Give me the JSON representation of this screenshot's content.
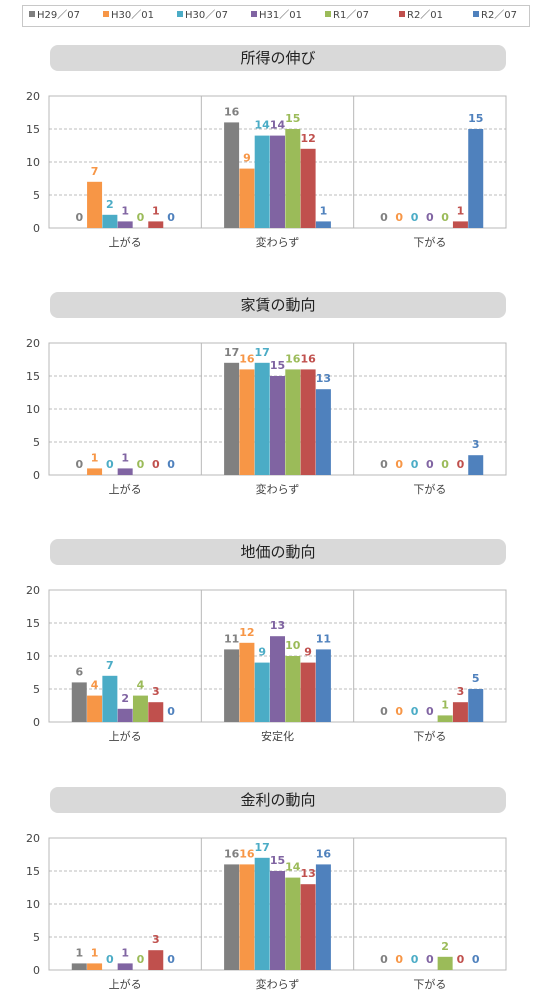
{
  "legend": {
    "series_labels": [
      "H29／07",
      "H30／01",
      "H30／07",
      "H31／01",
      "R1／07",
      "R2／01",
      "R2／07"
    ],
    "series_colors": [
      "#808080",
      "#f79646",
      "#4bacc6",
      "#8064a2",
      "#9bbb59",
      "#c0504d",
      "#4f81bd"
    ]
  },
  "chart_data": [
    {
      "type": "bar",
      "title": "所得の伸び",
      "categories": [
        "上がる",
        "変わらず",
        "下がる"
      ],
      "ylim": [
        0,
        20
      ],
      "yticks": [
        0,
        5,
        10,
        15,
        20
      ],
      "grid": true,
      "series": [
        {
          "name": "H29／07",
          "values": [
            0,
            16,
            0
          ]
        },
        {
          "name": "H30／01",
          "values": [
            7,
            9,
            0
          ]
        },
        {
          "name": "H30／07",
          "values": [
            2,
            14,
            0
          ]
        },
        {
          "name": "H31／01",
          "values": [
            1,
            14,
            0
          ]
        },
        {
          "name": "R1／07",
          "values": [
            0,
            15,
            0
          ]
        },
        {
          "name": "R2／01",
          "values": [
            1,
            12,
            1
          ]
        },
        {
          "name": "R2／07",
          "values": [
            0,
            1,
            15
          ]
        }
      ]
    },
    {
      "type": "bar",
      "title": "家賃の動向",
      "categories": [
        "上がる",
        "変わらず",
        "下がる"
      ],
      "ylim": [
        0,
        20
      ],
      "yticks": [
        0,
        5,
        10,
        15,
        20
      ],
      "grid": true,
      "series": [
        {
          "name": "H29／07",
          "values": [
            0,
            17,
            0
          ]
        },
        {
          "name": "H30／01",
          "values": [
            1,
            16,
            0
          ]
        },
        {
          "name": "H30／07",
          "values": [
            0,
            17,
            0
          ]
        },
        {
          "name": "H31／01",
          "values": [
            1,
            15,
            0
          ]
        },
        {
          "name": "R1／07",
          "values": [
            0,
            16,
            0
          ]
        },
        {
          "name": "R2／01",
          "values": [
            0,
            16,
            0
          ]
        },
        {
          "name": "R2／07",
          "values": [
            0,
            13,
            3
          ]
        }
      ]
    },
    {
      "type": "bar",
      "title": "地価の動向",
      "categories": [
        "上がる",
        "安定化",
        "下がる"
      ],
      "ylim": [
        0,
        20
      ],
      "yticks": [
        0,
        5,
        10,
        15,
        20
      ],
      "grid": true,
      "series": [
        {
          "name": "H29／07",
          "values": [
            6,
            11,
            0
          ]
        },
        {
          "name": "H30／01",
          "values": [
            4,
            12,
            0
          ]
        },
        {
          "name": "H30／07",
          "values": [
            7,
            9,
            0
          ]
        },
        {
          "name": "H31／01",
          "values": [
            2,
            13,
            0
          ]
        },
        {
          "name": "R1／07",
          "values": [
            4,
            10,
            1
          ]
        },
        {
          "name": "R2／01",
          "values": [
            3,
            9,
            3
          ]
        },
        {
          "name": "R2／07",
          "values": [
            0,
            11,
            5
          ]
        }
      ]
    },
    {
      "type": "bar",
      "title": "金利の動向",
      "categories": [
        "上がる",
        "変わらず",
        "下がる"
      ],
      "ylim": [
        0,
        20
      ],
      "yticks": [
        0,
        5,
        10,
        15,
        20
      ],
      "grid": true,
      "series": [
        {
          "name": "H29／07",
          "values": [
            1,
            16,
            0
          ]
        },
        {
          "name": "H30／01",
          "values": [
            1,
            16,
            0
          ]
        },
        {
          "name": "H30／07",
          "values": [
            0,
            17,
            0
          ]
        },
        {
          "name": "H31／01",
          "values": [
            1,
            15,
            0
          ]
        },
        {
          "name": "R1／07",
          "values": [
            0,
            14,
            2
          ]
        },
        {
          "name": "R2／01",
          "values": [
            3,
            13,
            0
          ]
        },
        {
          "name": "R2／07",
          "values": [
            0,
            16,
            0
          ]
        }
      ]
    }
  ]
}
